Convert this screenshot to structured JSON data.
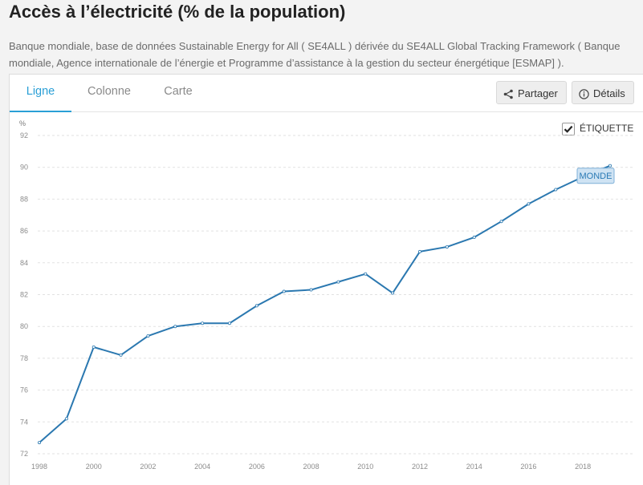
{
  "header": {
    "title": "Accès à l’électricité (% de la population)",
    "source": "Banque mondiale, base de données Sustainable Energy for All ( SE4ALL ) dérivée du SE4ALL Global Tracking Framework ( Banque mondiale, Agence internationale de l’énergie et Programme d’assistance à la gestion du secteur énergétique [ESMAP] )."
  },
  "tabs": [
    {
      "label": "Ligne",
      "active": true
    },
    {
      "label": "Colonne",
      "active": false
    },
    {
      "label": "Carte",
      "active": false
    }
  ],
  "actions": {
    "share_label": "Partager",
    "details_label": "Détails"
  },
  "label_toggle": {
    "label": "ÉTIQUETTE",
    "checked": true
  },
  "colors": {
    "line": "#2b78b0",
    "accent": "#2a9fd6",
    "grid": "#e2e2e2"
  },
  "chart_data": {
    "type": "line",
    "unit_label": "%",
    "x": [
      1998,
      1999,
      2000,
      2001,
      2002,
      2003,
      2004,
      2005,
      2006,
      2007,
      2008,
      2009,
      2010,
      2011,
      2012,
      2013,
      2014,
      2015,
      2016,
      2017,
      2018,
      2019
    ],
    "series": [
      {
        "name": "MONDE",
        "values": [
          72.7,
          74.2,
          78.7,
          78.2,
          79.4,
          80.0,
          80.2,
          80.2,
          81.3,
          82.2,
          82.3,
          82.8,
          83.3,
          82.1,
          84.7,
          85.0,
          85.6,
          86.6,
          87.7,
          88.6,
          89.4,
          90.1
        ]
      }
    ],
    "x_ticks": [
      "1998",
      "2000",
      "2002",
      "2004",
      "2006",
      "2008",
      "2010",
      "2012",
      "2014",
      "2016",
      "2018"
    ],
    "y_ticks": [
      "72",
      "74",
      "76",
      "78",
      "80",
      "82",
      "84",
      "86",
      "88",
      "90",
      "92"
    ],
    "xlim": [
      1998,
      2019
    ],
    "ylim": [
      72,
      92
    ],
    "grid": "horizontal dashed",
    "xlabel": "",
    "ylabel": ""
  }
}
